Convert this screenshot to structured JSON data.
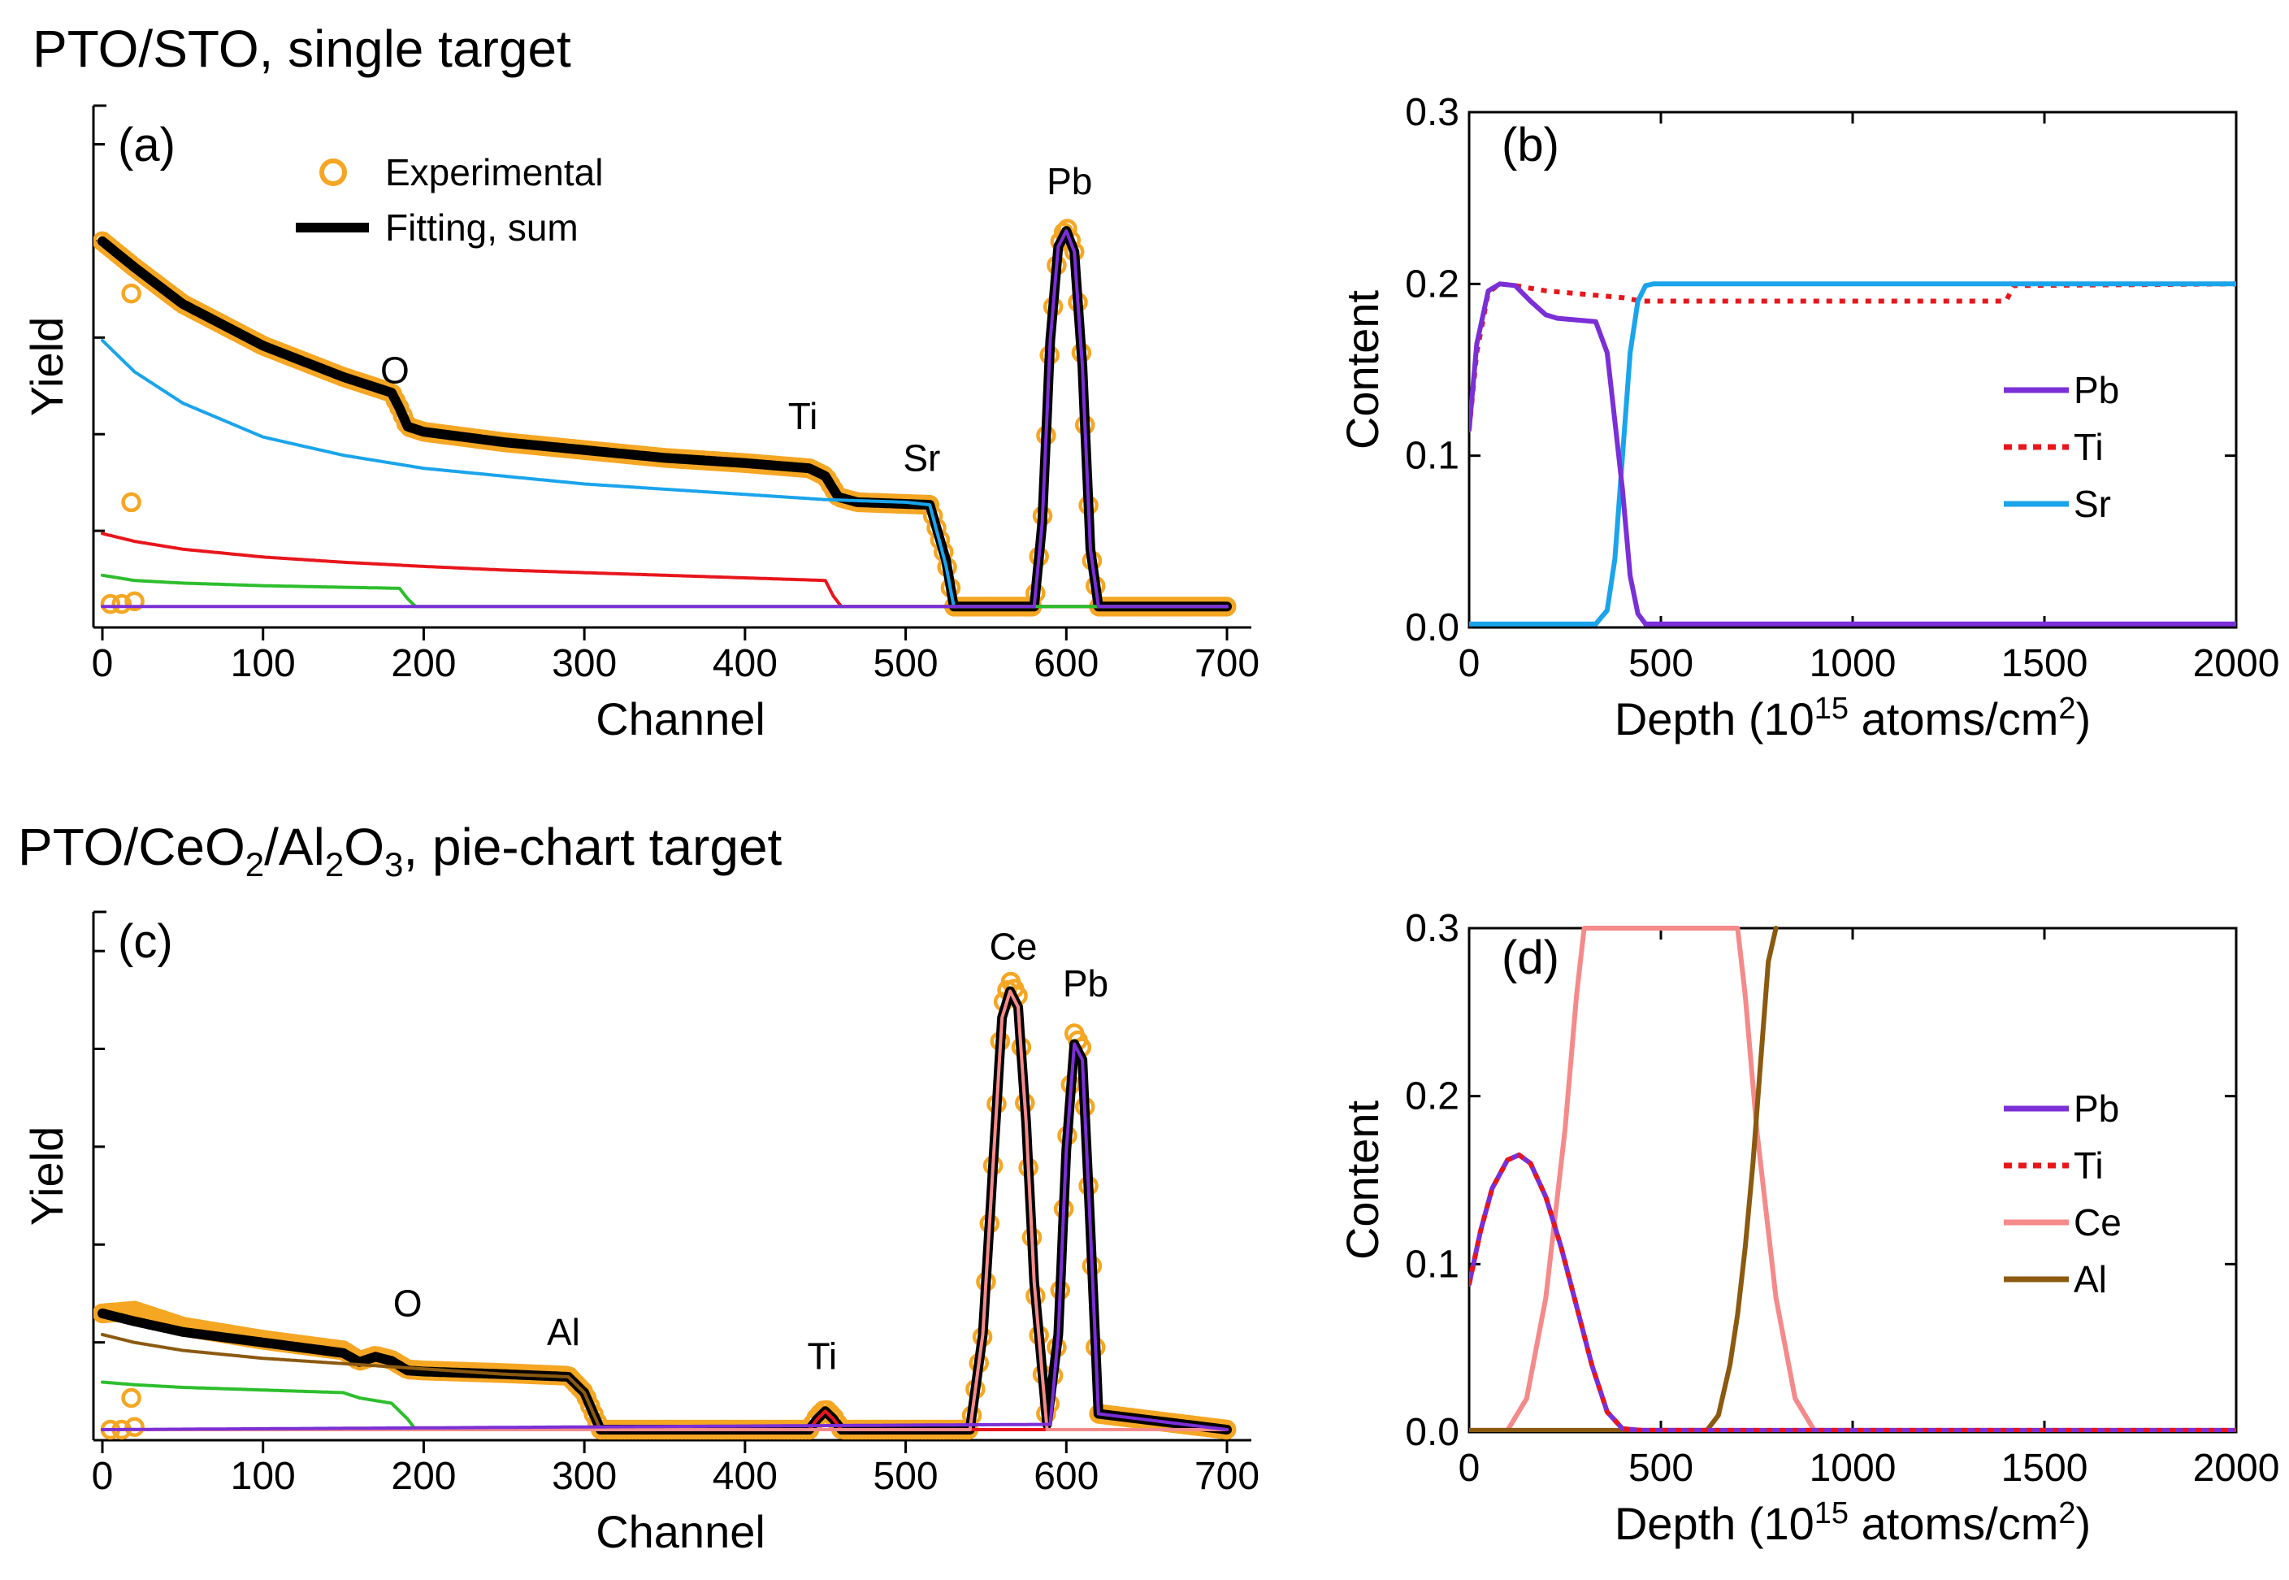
{
  "colors": {
    "experimental": "#F5A623",
    "fit": "#000000",
    "Pb": "#7B2FD6",
    "Ti": "#E8161C",
    "Sr": "#1AA4EB",
    "Ce": "#F58A8A",
    "Al": "#8B5A10",
    "O": "#2DBE2D"
  },
  "sections": {
    "top_title": "PTO/STO, single target",
    "bottom_title_parts": [
      "PTO/CeO",
      "2",
      "/Al",
      "2",
      "O",
      "3",
      ", pie-chart target"
    ]
  },
  "chart_data": [
    {
      "id": "a",
      "type": "line",
      "panel_label": "(a)",
      "xlabel": "Channel",
      "ylabel": "Yield",
      "xlim": [
        -10,
        710
      ],
      "ylim": [
        0,
        1
      ],
      "yticks_labeled": false,
      "xticks": [
        "0",
        "100",
        "200",
        "300",
        "400",
        "500",
        "600",
        "700"
      ],
      "legend": [
        {
          "name": "Experimental",
          "style": "circle",
          "color": "#F5A623"
        },
        {
          "name": "Fitting, sum",
          "style": "line",
          "color": "#000000"
        }
      ],
      "annotations": [
        {
          "text": "O",
          "x": 182,
          "y": 0.468
        },
        {
          "text": "Ti",
          "x": 436,
          "y": 0.38
        },
        {
          "text": "Sr",
          "x": 510,
          "y": 0.3
        },
        {
          "text": "Pb",
          "x": 602,
          "y": 0.83
        }
      ],
      "series": [
        {
          "name": "Fitting, sum",
          "color": "#000000",
          "x": [
            0,
            20,
            50,
            100,
            150,
            180,
            185,
            190,
            200,
            250,
            300,
            350,
            400,
            440,
            450,
            458,
            470,
            515,
            525,
            530,
            535,
            580,
            585,
            590,
            595,
            600,
            605,
            610,
            615,
            620,
            700
          ],
          "y": [
            0.74,
            0.69,
            0.62,
            0.54,
            0.48,
            0.45,
            0.42,
            0.385,
            0.375,
            0.355,
            0.34,
            0.325,
            0.315,
            0.305,
            0.29,
            0.25,
            0.24,
            0.235,
            0.13,
            0.04,
            0.04,
            0.04,
            0.2,
            0.55,
            0.73,
            0.76,
            0.72,
            0.5,
            0.15,
            0.04,
            0.04
          ]
        },
        {
          "name": "Sr",
          "color": "#1AA4EB",
          "x": [
            0,
            20,
            50,
            100,
            150,
            200,
            250,
            300,
            350,
            400,
            450,
            500,
            515,
            525,
            530,
            700
          ],
          "y": [
            0.55,
            0.49,
            0.43,
            0.365,
            0.33,
            0.305,
            0.29,
            0.275,
            0.265,
            0.255,
            0.245,
            0.24,
            0.235,
            0.12,
            0.04,
            0.04
          ]
        },
        {
          "name": "Ti",
          "color": "#E8161C",
          "x": [
            0,
            20,
            50,
            100,
            150,
            200,
            250,
            300,
            350,
            400,
            450,
            455,
            460,
            700
          ],
          "y": [
            0.18,
            0.165,
            0.15,
            0.135,
            0.125,
            0.117,
            0.11,
            0.105,
            0.1,
            0.095,
            0.09,
            0.06,
            0.04,
            0.04
          ]
        },
        {
          "name": "O",
          "color": "#2DBE2D",
          "x": [
            0,
            20,
            50,
            100,
            150,
            185,
            190,
            195,
            700
          ],
          "y": [
            0.1,
            0.09,
            0.085,
            0.08,
            0.077,
            0.075,
            0.055,
            0.04,
            0.04
          ]
        },
        {
          "name": "Pb",
          "color": "#7B2FD6",
          "x": [
            0,
            580,
            585,
            590,
            595,
            600,
            605,
            610,
            615,
            620,
            700
          ],
          "y": [
            0.04,
            0.04,
            0.2,
            0.55,
            0.73,
            0.76,
            0.72,
            0.5,
            0.15,
            0.04,
            0.04
          ]
        }
      ],
      "experimental": {
        "x": [
          0,
          20,
          50,
          100,
          150,
          180,
          185,
          190,
          200,
          250,
          300,
          350,
          400,
          440,
          450,
          458,
          470,
          515,
          525,
          530,
          535,
          580,
          585,
          590,
          595,
          600,
          605,
          610,
          615,
          620,
          700
        ],
        "y": [
          0.74,
          0.69,
          0.62,
          0.54,
          0.48,
          0.45,
          0.42,
          0.385,
          0.375,
          0.355,
          0.34,
          0.325,
          0.315,
          0.305,
          0.29,
          0.25,
          0.24,
          0.235,
          0.13,
          0.04,
          0.04,
          0.04,
          0.2,
          0.55,
          0.73,
          0.77,
          0.72,
          0.5,
          0.15,
          0.04,
          0.04
        ],
        "outliers": [
          [
            18,
            0.64
          ],
          [
            18,
            0.24
          ],
          [
            5,
            0.045
          ],
          [
            12,
            0.045
          ],
          [
            20,
            0.05
          ]
        ]
      }
    },
    {
      "id": "b",
      "type": "line",
      "panel_label": "(b)",
      "xlabel_parts": [
        "Depth (10",
        "15",
        " atoms/cm",
        "2",
        ")"
      ],
      "ylabel": "Content",
      "xlim": [
        0,
        2000
      ],
      "ylim": [
        0,
        0.3
      ],
      "xticks": [
        "0",
        "500",
        "1000",
        "1500",
        "2000"
      ],
      "yticks": [
        "0.0",
        "0.1",
        "0.2",
        "0.3"
      ],
      "legend": [
        {
          "name": "Pb",
          "style": "line",
          "color": "#7B2FD6"
        },
        {
          "name": "Ti",
          "style": "dotted",
          "color": "#E8161C"
        },
        {
          "name": "Sr",
          "style": "line",
          "color": "#1AA4EB"
        }
      ],
      "series": [
        {
          "name": "Ti",
          "color": "#E8161C",
          "dash": true,
          "x": [
            0,
            20,
            50,
            80,
            120,
            200,
            300,
            400,
            450,
            1400,
            1420,
            2000
          ],
          "y": [
            0.115,
            0.16,
            0.195,
            0.2,
            0.199,
            0.196,
            0.194,
            0.192,
            0.19,
            0.19,
            0.199,
            0.2
          ]
        },
        {
          "name": "Sr",
          "color": "#1AA4EB",
          "x": [
            0,
            330,
            360,
            380,
            400,
            420,
            440,
            460,
            480,
            2000
          ],
          "y": [
            0.002,
            0.002,
            0.01,
            0.04,
            0.1,
            0.16,
            0.19,
            0.199,
            0.2,
            0.2
          ]
        },
        {
          "name": "Pb",
          "color": "#7B2FD6",
          "x": [
            0,
            20,
            50,
            80,
            120,
            160,
            200,
            230,
            330,
            360,
            380,
            400,
            420,
            440,
            460,
            500,
            2000
          ],
          "y": [
            0.115,
            0.165,
            0.196,
            0.2,
            0.199,
            0.19,
            0.182,
            0.18,
            0.178,
            0.16,
            0.12,
            0.08,
            0.03,
            0.008,
            0.002,
            0.002,
            0.002
          ]
        }
      ]
    },
    {
      "id": "c",
      "type": "line",
      "panel_label": "(c)",
      "xlabel": "Channel",
      "ylabel": "Yield",
      "xlim": [
        -10,
        710
      ],
      "ylim": [
        0,
        1
      ],
      "yticks_labeled": false,
      "xticks": [
        "0",
        "100",
        "200",
        "300",
        "400",
        "500",
        "600",
        "700"
      ],
      "annotations": [
        {
          "text": "O",
          "x": 190,
          "y": 0.235
        },
        {
          "text": "Al",
          "x": 287,
          "y": 0.18
        },
        {
          "text": "Ti",
          "x": 448,
          "y": 0.135
        },
        {
          "text": "Ce",
          "x": 567,
          "y": 0.91
        },
        {
          "text": "Pb",
          "x": 612,
          "y": 0.84
        }
      ],
      "series": [
        {
          "name": "Fitting, sum",
          "color": "#000000",
          "x": [
            0,
            20,
            50,
            100,
            150,
            160,
            170,
            180,
            190,
            200,
            250,
            290,
            300,
            310,
            440,
            445,
            450,
            455,
            460,
            540,
            548,
            555,
            560,
            565,
            570,
            575,
            580,
            588,
            595,
            600,
            605,
            610,
            615,
            620,
            700
          ],
          "y": [
            0.24,
            0.225,
            0.205,
            0.185,
            0.165,
            0.148,
            0.158,
            0.15,
            0.132,
            0.13,
            0.125,
            0.12,
            0.09,
            0.02,
            0.02,
            0.04,
            0.055,
            0.04,
            0.02,
            0.02,
            0.2,
            0.55,
            0.8,
            0.85,
            0.82,
            0.6,
            0.3,
            0.03,
            0.2,
            0.55,
            0.75,
            0.72,
            0.4,
            0.05,
            0.02
          ]
        },
        {
          "name": "Al",
          "color": "#8B5A10",
          "x": [
            0,
            20,
            50,
            100,
            150,
            200,
            250,
            290,
            300,
            310,
            700
          ],
          "y": [
            0.2,
            0.185,
            0.17,
            0.155,
            0.145,
            0.135,
            0.125,
            0.12,
            0.09,
            0.02,
            0.02
          ]
        },
        {
          "name": "O",
          "color": "#2DBE2D",
          "x": [
            0,
            20,
            50,
            100,
            150,
            160,
            170,
            180,
            190,
            195,
            700
          ],
          "y": [
            0.11,
            0.105,
            0.1,
            0.095,
            0.09,
            0.08,
            0.075,
            0.07,
            0.04,
            0.02,
            0.02
          ]
        },
        {
          "name": "Ti",
          "color": "#E8161C",
          "x": [
            0,
            440,
            445,
            450,
            455,
            460,
            700
          ],
          "y": [
            0.02,
            0.02,
            0.04,
            0.055,
            0.04,
            0.02,
            0.02
          ]
        },
        {
          "name": "Ce",
          "color": "#F58A8A",
          "x": [
            0,
            540,
            548,
            555,
            560,
            565,
            570,
            575,
            580,
            588,
            700
          ],
          "y": [
            0.02,
            0.02,
            0.2,
            0.55,
            0.8,
            0.85,
            0.82,
            0.6,
            0.3,
            0.02,
            0.02
          ]
        },
        {
          "name": "Pb",
          "color": "#7B2FD6",
          "x": [
            0,
            590,
            595,
            600,
            605,
            610,
            615,
            620,
            700
          ],
          "y": [
            0.02,
            0.03,
            0.2,
            0.55,
            0.75,
            0.72,
            0.4,
            0.05,
            0.02
          ]
        }
      ],
      "experimental": {
        "x": [
          0,
          20,
          50,
          100,
          150,
          160,
          170,
          180,
          190,
          200,
          250,
          290,
          300,
          310,
          440,
          445,
          450,
          455,
          460,
          540,
          548,
          555,
          560,
          565,
          570,
          575,
          580,
          588,
          595,
          600,
          605,
          610,
          615,
          620,
          700
        ],
        "y": [
          0.24,
          0.245,
          0.215,
          0.19,
          0.17,
          0.15,
          0.16,
          0.152,
          0.134,
          0.132,
          0.127,
          0.122,
          0.09,
          0.02,
          0.02,
          0.045,
          0.06,
          0.045,
          0.02,
          0.02,
          0.2,
          0.55,
          0.82,
          0.87,
          0.84,
          0.6,
          0.3,
          0.03,
          0.2,
          0.55,
          0.77,
          0.74,
          0.4,
          0.05,
          0.02
        ],
        "outliers": [
          [
            18,
            0.08
          ],
          [
            5,
            0.02
          ],
          [
            12,
            0.02
          ],
          [
            20,
            0.025
          ]
        ]
      }
    },
    {
      "id": "d",
      "type": "line",
      "panel_label": "(d)",
      "xlabel_parts": [
        "Depth (10",
        "15",
        " atoms/cm",
        "2",
        ")"
      ],
      "ylabel": "Content",
      "xlim": [
        0,
        2000
      ],
      "ylim": [
        0,
        0.3
      ],
      "xticks": [
        "0",
        "500",
        "1000",
        "1500",
        "2000"
      ],
      "yticks": [
        "0.0",
        "0.1",
        "0.2",
        "0.3"
      ],
      "legend": [
        {
          "name": "Pb",
          "style": "line",
          "color": "#7B2FD6"
        },
        {
          "name": "Ti",
          "style": "dotted",
          "color": "#E8161C"
        },
        {
          "name": "Ce",
          "style": "line",
          "color": "#F58A8A"
        },
        {
          "name": "Al",
          "style": "line",
          "color": "#8B5A10"
        }
      ],
      "series": [
        {
          "name": "Ce",
          "color": "#F58A8A",
          "x": [
            0,
            100,
            150,
            200,
            250,
            280,
            300,
            700,
            720,
            750,
            800,
            850,
            900,
            2000
          ],
          "y": [
            0.001,
            0.001,
            0.02,
            0.08,
            0.18,
            0.26,
            0.3,
            0.3,
            0.26,
            0.18,
            0.08,
            0.02,
            0.001,
            0.001
          ]
        },
        {
          "name": "Al",
          "color": "#8B5A10",
          "x": [
            0,
            620,
            650,
            680,
            700,
            720,
            740,
            760,
            780,
            800
          ],
          "y": [
            0.001,
            0.001,
            0.01,
            0.04,
            0.07,
            0.11,
            0.16,
            0.22,
            0.28,
            0.3
          ]
        },
        {
          "name": "Pb",
          "color": "#7B2FD6",
          "x": [
            0,
            30,
            60,
            100,
            130,
            160,
            200,
            240,
            280,
            320,
            360,
            400,
            450,
            2000
          ],
          "y": [
            0.088,
            0.12,
            0.145,
            0.162,
            0.165,
            0.16,
            0.14,
            0.11,
            0.075,
            0.04,
            0.012,
            0.002,
            0.001,
            0.001
          ]
        },
        {
          "name": "Ti",
          "color": "#E8161C",
          "dash": true,
          "x": [
            0,
            30,
            60,
            100,
            130,
            160,
            200,
            240,
            280,
            320,
            360,
            400,
            450,
            2000
          ],
          "y": [
            0.088,
            0.12,
            0.145,
            0.162,
            0.165,
            0.16,
            0.14,
            0.11,
            0.075,
            0.04,
            0.012,
            0.002,
            0.001,
            0.001
          ]
        }
      ]
    }
  ]
}
